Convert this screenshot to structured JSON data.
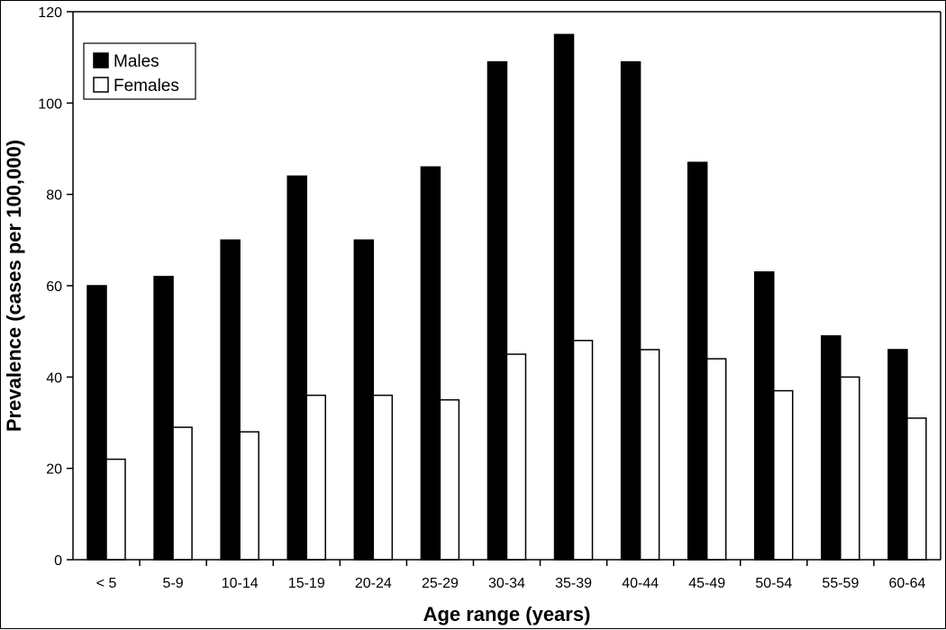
{
  "chart_data": {
    "type": "bar",
    "title": "",
    "xlabel": "Age range (years)",
    "ylabel": "Prevalence (cases per 100,000)",
    "ylim": [
      0,
      120
    ],
    "yticks": [
      0,
      20,
      40,
      60,
      80,
      100,
      120
    ],
    "grid": false,
    "legend_position": "top-left",
    "categories": [
      "< 5",
      "5-9",
      "10-14",
      "15-19",
      "20-24",
      "25-29",
      "30-34",
      "35-39",
      "40-44",
      "45-49",
      "50-54",
      "55-59",
      "60-64"
    ],
    "series": [
      {
        "name": "Males",
        "color": "#000000",
        "values": [
          60,
          62,
          70,
          84,
          70,
          86,
          109,
          115,
          109,
          87,
          63,
          49,
          46
        ]
      },
      {
        "name": "Females",
        "color": "#ffffff",
        "values": [
          22,
          29,
          28,
          36,
          36,
          35,
          45,
          48,
          46,
          44,
          37,
          40,
          31
        ]
      }
    ]
  }
}
